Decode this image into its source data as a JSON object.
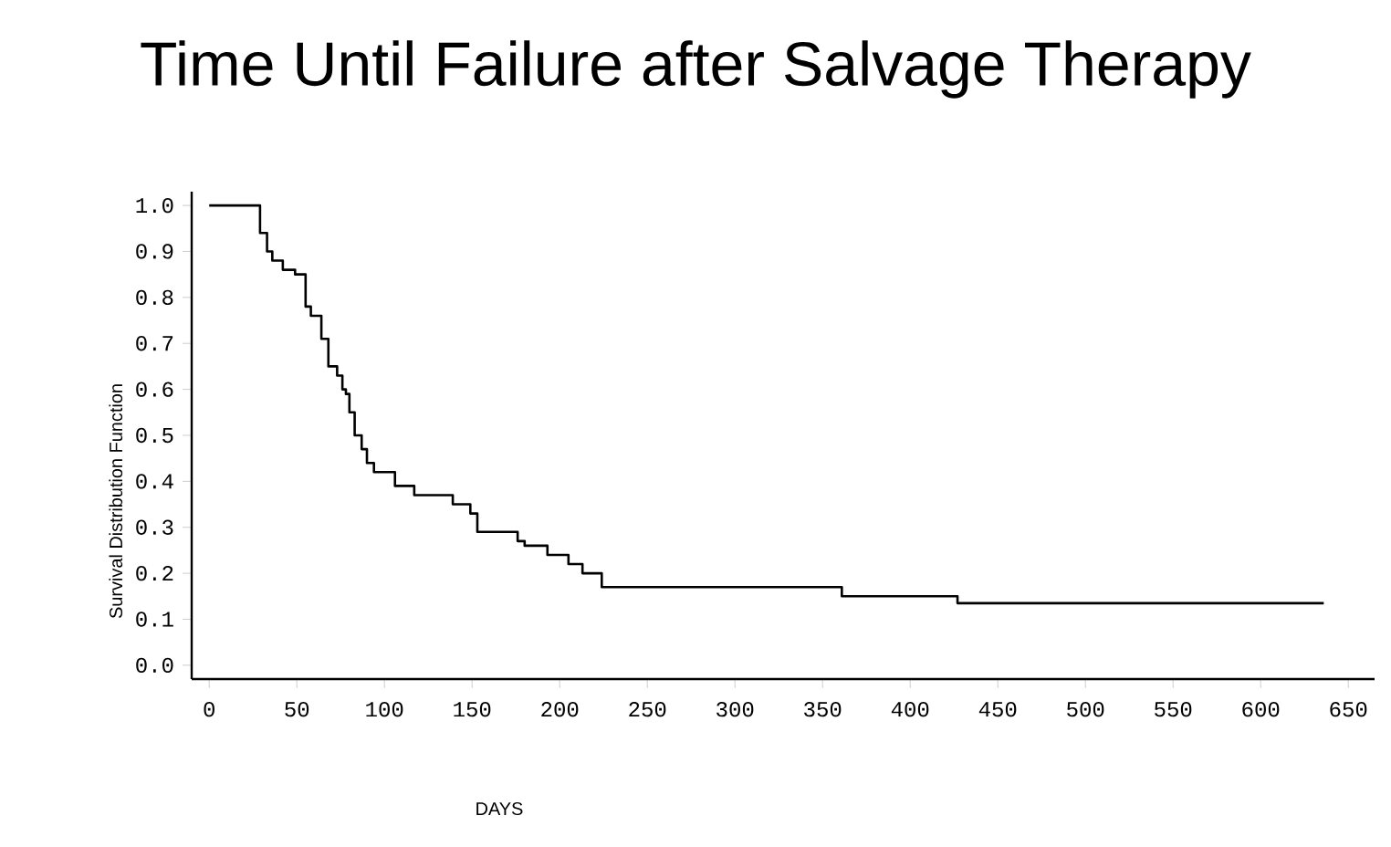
{
  "chart_data": {
    "type": "step",
    "title": "Time Until Failure after Salvage Therapy",
    "xlabel": "DAYS",
    "ylabel": "Survival Distribution Function",
    "x": [
      0,
      29,
      33,
      36,
      42,
      49,
      55,
      58,
      64,
      68,
      73,
      76,
      78,
      80,
      83,
      87,
      90,
      94,
      106,
      117,
      139,
      149,
      153,
      176,
      180,
      193,
      205,
      213,
      224,
      361,
      427,
      636
    ],
    "values": [
      1.0,
      0.94,
      0.9,
      0.88,
      0.86,
      0.85,
      0.78,
      0.76,
      0.71,
      0.65,
      0.63,
      0.6,
      0.59,
      0.55,
      0.5,
      0.47,
      0.44,
      0.42,
      0.39,
      0.37,
      0.35,
      0.33,
      0.29,
      0.27,
      0.26,
      0.24,
      0.22,
      0.2,
      0.17,
      0.15,
      0.135,
      0.135
    ],
    "color": "#000000",
    "xlim": [
      -10,
      665
    ],
    "ylim": [
      -0.03,
      1.03
    ],
    "xticks": [
      0,
      50,
      100,
      150,
      200,
      250,
      300,
      350,
      400,
      450,
      500,
      550,
      600,
      650
    ],
    "yticks": [
      {
        "value": 0,
        "label": "0.0"
      },
      {
        "value": 0.1,
        "label": "0.1"
      },
      {
        "value": 0.2,
        "label": "0.2"
      },
      {
        "value": 0.3,
        "label": "0.3"
      },
      {
        "value": 0.4,
        "label": "0.4"
      },
      {
        "value": 0.5,
        "label": "0.5"
      },
      {
        "value": 0.6,
        "label": "0.6"
      },
      {
        "value": 0.7,
        "label": "0.7"
      },
      {
        "value": 0.8,
        "label": "0.8"
      },
      {
        "value": 0.9,
        "label": "0.9"
      },
      {
        "value": 1.0,
        "label": "1.0"
      }
    ]
  }
}
